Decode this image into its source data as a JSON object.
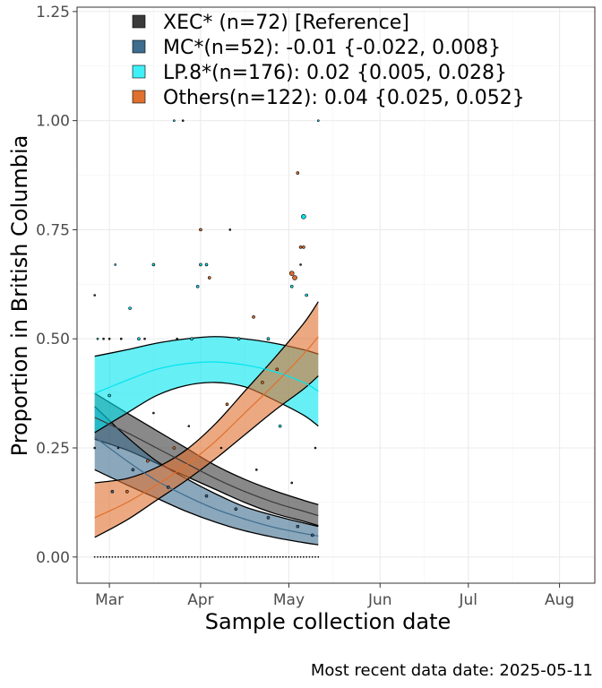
{
  "chart_data": {
    "type": "line",
    "xlabel": "Sample collection date",
    "ylabel": "Proportion in British Columbia",
    "caption": "Most recent data date: 2025-05-11",
    "x_axis": {
      "type": "date",
      "range": [
        "2025-02-18",
        "2025-08-13"
      ],
      "ticks": [
        {
          "date": "2025-03-01",
          "label": "Mar"
        },
        {
          "date": "2025-04-01",
          "label": "Apr"
        },
        {
          "date": "2025-05-01",
          "label": "May"
        },
        {
          "date": "2025-06-01",
          "label": "Jun"
        },
        {
          "date": "2025-07-01",
          "label": "Jul"
        },
        {
          "date": "2025-08-01",
          "label": "Aug"
        }
      ]
    },
    "y_axis": {
      "range": [
        -0.06,
        1.26
      ],
      "ticks": [
        0.0,
        0.25,
        0.5,
        0.75,
        1.0,
        1.25
      ],
      "tick_labels": [
        "0.00",
        "0.25",
        "0.50",
        "0.75",
        "1.00",
        "1.25"
      ]
    },
    "grid": true,
    "legend_position": "top",
    "series": [
      {
        "name": "XEC*",
        "legend_label": "XEC* (n=72)  [Reference]",
        "color": "#3b3b3b",
        "x": [
          "2025-02-24",
          "2025-03-07",
          "2025-03-17",
          "2025-03-27",
          "2025-04-06",
          "2025-04-16",
          "2025-04-26",
          "2025-05-06",
          "2025-05-11"
        ],
        "fit": [
          0.32,
          0.285,
          0.25,
          0.215,
          0.18,
          0.15,
          0.125,
          0.105,
          0.095
        ],
        "lower": [
          0.27,
          0.245,
          0.215,
          0.185,
          0.155,
          0.125,
          0.1,
          0.082,
          0.072
        ],
        "upper": [
          0.375,
          0.33,
          0.29,
          0.25,
          0.21,
          0.178,
          0.152,
          0.13,
          0.12
        ]
      },
      {
        "name": "MC*",
        "legend_label": "MC*(n=52): -0.01 {-0.022, 0.008}",
        "color": "#3e6d8e",
        "x": [
          "2025-02-24",
          "2025-03-07",
          "2025-03-17",
          "2025-03-27",
          "2025-04-06",
          "2025-04-16",
          "2025-04-26",
          "2025-05-06",
          "2025-05-11"
        ],
        "fit": [
          0.275,
          0.22,
          0.175,
          0.14,
          0.11,
          0.087,
          0.068,
          0.054,
          0.048
        ],
        "lower": [
          0.2,
          0.165,
          0.135,
          0.105,
          0.08,
          0.06,
          0.045,
          0.033,
          0.028
        ],
        "upper": [
          0.345,
          0.275,
          0.22,
          0.18,
          0.145,
          0.115,
          0.095,
          0.078,
          0.07
        ]
      },
      {
        "name": "LP.8*",
        "legend_label": "LP.8*(n=176): 0.02 {0.005, 0.028}",
        "color": "#00e5ee",
        "x": [
          "2025-02-24",
          "2025-03-07",
          "2025-03-17",
          "2025-03-27",
          "2025-04-06",
          "2025-04-16",
          "2025-04-26",
          "2025-05-06",
          "2025-05-11"
        ],
        "fit": [
          0.375,
          0.405,
          0.43,
          0.443,
          0.447,
          0.44,
          0.425,
          0.4,
          0.38
        ],
        "lower": [
          0.285,
          0.33,
          0.37,
          0.393,
          0.4,
          0.39,
          0.36,
          0.325,
          0.3
        ],
        "upper": [
          0.46,
          0.475,
          0.49,
          0.5,
          0.505,
          0.5,
          0.49,
          0.475,
          0.465
        ]
      },
      {
        "name": "Others",
        "legend_label": "Others(n=122): 0.04 {0.025, 0.052}",
        "color": "#e0702d",
        "x": [
          "2025-02-24",
          "2025-03-07",
          "2025-03-17",
          "2025-03-27",
          "2025-04-06",
          "2025-04-16",
          "2025-04-26",
          "2025-05-06",
          "2025-05-11"
        ],
        "fit": [
          0.09,
          0.125,
          0.165,
          0.21,
          0.265,
          0.33,
          0.395,
          0.465,
          0.505
        ],
        "lower": [
          0.045,
          0.085,
          0.13,
          0.175,
          0.225,
          0.28,
          0.335,
          0.385,
          0.415
        ],
        "upper": [
          0.17,
          0.18,
          0.205,
          0.245,
          0.305,
          0.38,
          0.455,
          0.535,
          0.585
        ]
      }
    ],
    "points": [
      {
        "date": "2025-02-24",
        "y": 0.6,
        "series": "XEC*",
        "size": 1
      },
      {
        "date": "2025-02-27",
        "y": 0.5,
        "series": "XEC*",
        "size": 1
      },
      {
        "date": "2025-03-01",
        "y": 0.5,
        "series": "XEC*",
        "size": 1
      },
      {
        "date": "2025-03-05",
        "y": 0.5,
        "series": "XEC*",
        "size": 1
      },
      {
        "date": "2025-03-13",
        "y": 0.5,
        "series": "XEC*",
        "size": 1
      },
      {
        "date": "2025-03-24",
        "y": 0.5,
        "series": "XEC*",
        "size": 1
      },
      {
        "date": "2025-03-26",
        "y": 1.0,
        "series": "XEC*",
        "size": 1
      },
      {
        "date": "2025-04-11",
        "y": 0.75,
        "series": "XEC*",
        "size": 1
      },
      {
        "date": "2025-05-05",
        "y": 0.67,
        "series": "XEC*",
        "size": 1
      },
      {
        "date": "2025-02-24",
        "y": 0.25,
        "series": "XEC*",
        "size": 1
      },
      {
        "date": "2025-03-04",
        "y": 0.25,
        "series": "XEC*",
        "size": 1
      },
      {
        "date": "2025-03-16",
        "y": 0.33,
        "series": "XEC*",
        "size": 1
      },
      {
        "date": "2025-03-28",
        "y": 0.3,
        "series": "XEC*",
        "size": 1
      },
      {
        "date": "2025-04-08",
        "y": 0.25,
        "series": "XEC*",
        "size": 1
      },
      {
        "date": "2025-04-20",
        "y": 0.2,
        "series": "XEC*",
        "size": 1
      },
      {
        "date": "2025-05-02",
        "y": 0.17,
        "series": "XEC*",
        "size": 1
      },
      {
        "date": "2025-05-10",
        "y": 0.25,
        "series": "XEC*",
        "size": 1
      },
      {
        "date": "2025-02-25",
        "y": 0.5,
        "series": "LP.8*",
        "size": 1
      },
      {
        "date": "2025-03-03",
        "y": 0.67,
        "series": "LP.8*",
        "size": 1
      },
      {
        "date": "2025-03-08",
        "y": 0.57,
        "series": "LP.8*",
        "size": 1.5
      },
      {
        "date": "2025-03-11",
        "y": 0.5,
        "series": "LP.8*",
        "size": 1.5
      },
      {
        "date": "2025-03-16",
        "y": 0.67,
        "series": "LP.8*",
        "size": 1.5
      },
      {
        "date": "2025-03-23",
        "y": 1.0,
        "series": "LP.8*",
        "size": 1
      },
      {
        "date": "2025-03-29",
        "y": 0.5,
        "series": "LP.8*",
        "size": 1.5
      },
      {
        "date": "2025-03-31",
        "y": 0.62,
        "series": "LP.8*",
        "size": 1.5
      },
      {
        "date": "2025-04-01",
        "y": 0.67,
        "series": "LP.8*",
        "size": 1.5
      },
      {
        "date": "2025-04-03",
        "y": 0.67,
        "series": "LP.8*",
        "size": 1.5
      },
      {
        "date": "2025-04-14",
        "y": 0.5,
        "series": "LP.8*",
        "size": 1.5
      },
      {
        "date": "2025-04-24",
        "y": 0.5,
        "series": "LP.8*",
        "size": 1.5
      },
      {
        "date": "2025-05-02",
        "y": 0.62,
        "series": "LP.8*",
        "size": 1.5
      },
      {
        "date": "2025-05-06",
        "y": 0.78,
        "series": "LP.8*",
        "size": 2.5
      },
      {
        "date": "2025-05-07",
        "y": 0.6,
        "series": "LP.8*",
        "size": 1.5
      },
      {
        "date": "2025-05-11",
        "y": 1.0,
        "series": "LP.8*",
        "size": 1
      },
      {
        "date": "2025-04-28",
        "y": 0.3,
        "series": "LP.8*",
        "size": 1.5
      },
      {
        "date": "2025-03-01",
        "y": 0.37,
        "series": "LP.8*",
        "size": 1.5
      },
      {
        "date": "2025-04-04",
        "y": 0.64,
        "series": "Others",
        "size": 1.5
      },
      {
        "date": "2025-04-01",
        "y": 0.75,
        "series": "Others",
        "size": 1.5
      },
      {
        "date": "2025-04-19",
        "y": 0.55,
        "series": "Others",
        "size": 1.5
      },
      {
        "date": "2025-05-02",
        "y": 0.65,
        "series": "Others",
        "size": 2.5
      },
      {
        "date": "2025-05-03",
        "y": 0.64,
        "series": "Others",
        "size": 2.5
      },
      {
        "date": "2025-05-05",
        "y": 0.71,
        "series": "Others",
        "size": 1.5
      },
      {
        "date": "2025-05-06",
        "y": 0.71,
        "series": "Others",
        "size": 1.5
      },
      {
        "date": "2025-05-04",
        "y": 0.88,
        "series": "Others",
        "size": 1.5
      },
      {
        "date": "2025-03-07",
        "y": 0.15,
        "series": "Others",
        "size": 1.5
      },
      {
        "date": "2025-03-14",
        "y": 0.22,
        "series": "Others",
        "size": 1.5
      },
      {
        "date": "2025-03-23",
        "y": 0.25,
        "series": "Others",
        "size": 1.5
      },
      {
        "date": "2025-04-10",
        "y": 0.35,
        "series": "Others",
        "size": 1.5
      },
      {
        "date": "2025-04-22",
        "y": 0.4,
        "series": "Others",
        "size": 1.5
      },
      {
        "date": "2025-04-27",
        "y": 0.43,
        "series": "Others",
        "size": 1.5
      },
      {
        "date": "2025-03-02",
        "y": 0.15,
        "series": "MC*",
        "size": 1.5
      },
      {
        "date": "2025-03-09",
        "y": 0.2,
        "series": "MC*",
        "size": 1.5
      },
      {
        "date": "2025-03-21",
        "y": 0.16,
        "series": "MC*",
        "size": 1.5
      },
      {
        "date": "2025-04-03",
        "y": 0.14,
        "series": "MC*",
        "size": 1.5
      },
      {
        "date": "2025-04-13",
        "y": 0.11,
        "series": "MC*",
        "size": 1.5
      },
      {
        "date": "2025-04-24",
        "y": 0.09,
        "series": "MC*",
        "size": 1.5
      },
      {
        "date": "2025-05-04",
        "y": 0.07,
        "series": "MC*",
        "size": 1.5
      },
      {
        "date": "2025-05-09",
        "y": 0.05,
        "series": "MC*",
        "size": 1.5
      }
    ],
    "zero_points": {
      "series": "XEC*",
      "y": 0.0,
      "from": "2025-02-24",
      "to": "2025-05-11"
    }
  },
  "legend": [
    {
      "label": "XEC* (n=72)  [Reference]",
      "color": "#3b3b3b"
    },
    {
      "label": "MC*(n=52): -0.01 {-0.022, 0.008}",
      "color": "#3e6d8e"
    },
    {
      "label": "LP.8*(n=176): 0.02 {0.005, 0.028}",
      "color": "#3ff0f7"
    },
    {
      "label": "Others(n=122): 0.04 {0.025, 0.052}",
      "color": "#e0702d"
    }
  ]
}
